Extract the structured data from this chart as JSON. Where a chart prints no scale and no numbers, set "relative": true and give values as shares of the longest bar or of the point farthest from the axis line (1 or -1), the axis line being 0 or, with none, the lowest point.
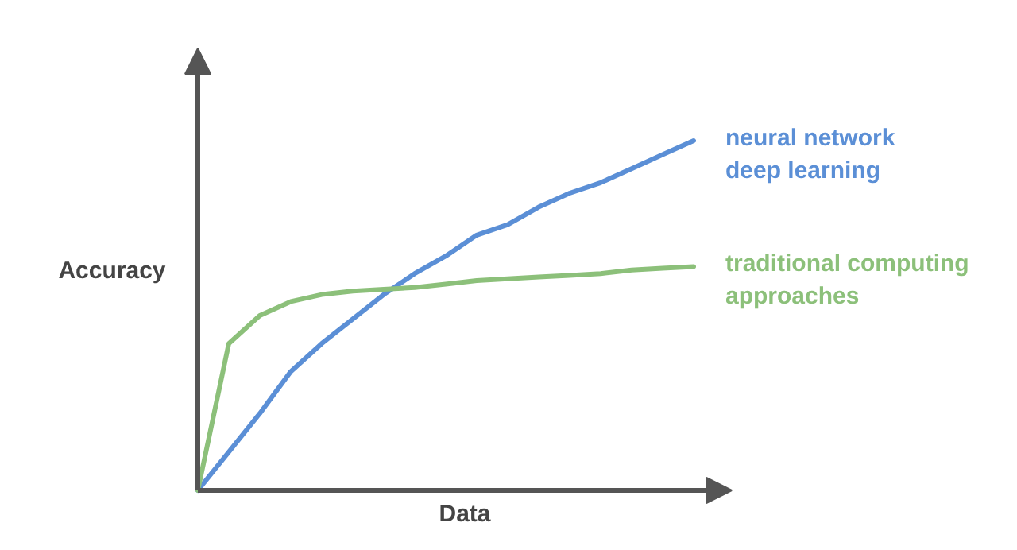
{
  "chart_data": {
    "type": "line",
    "relative": true,
    "grid": false,
    "xlabel": "Data",
    "ylabel": "Accuracy",
    "categories": [
      null,
      null,
      null,
      null,
      null,
      null,
      null,
      null,
      null,
      null,
      null,
      null,
      null,
      null,
      null,
      null,
      null
    ],
    "series": [
      {
        "name": "neural network\ndeep learning",
        "color": "#5b8fd6",
        "values": [
          0,
          0.11,
          0.22,
          0.34,
          0.42,
          0.49,
          0.56,
          0.62,
          0.67,
          0.73,
          0.76,
          0.81,
          0.85,
          0.88,
          0.92,
          0.96,
          1
        ]
      },
      {
        "name": "traditional computing\napproaches",
        "color": "#8cc07a",
        "values": [
          0,
          0.42,
          0.5,
          0.54,
          0.56,
          0.57,
          0.575,
          0.58,
          0.59,
          0.6,
          0.605,
          0.61,
          0.615,
          0.62,
          0.63,
          0.635,
          0.64
        ]
      }
    ]
  }
}
